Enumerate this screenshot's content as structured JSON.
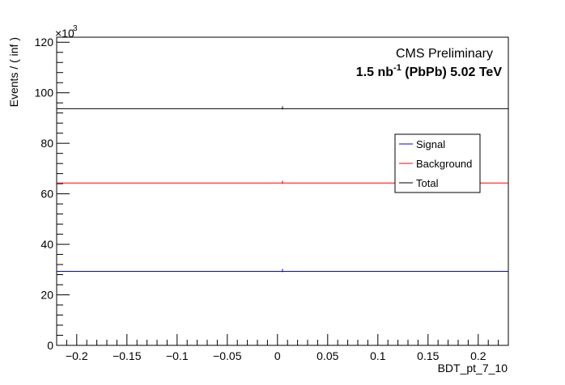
{
  "chart_data": {
    "type": "line",
    "xlabel": "BDT_pt_7_10",
    "ylabel": "Events / ( inf )",
    "y_multiplier_label": "×10",
    "y_multiplier_exp": "3",
    "xlim": [
      -0.22,
      0.23
    ],
    "ylim": [
      0,
      122
    ],
    "x_ticks": [
      -0.2,
      -0.15,
      -0.1,
      -0.05,
      0,
      0.05,
      0.1,
      0.15,
      0.2
    ],
    "x_tick_labels": [
      "−0.2",
      "−0.15",
      "−0.1",
      "−0.05",
      "0",
      "0.05",
      "0.1",
      "0.15",
      "0.2"
    ],
    "y_ticks": [
      0,
      20,
      40,
      60,
      80,
      100,
      120
    ],
    "y_tick_labels": [
      "0",
      "20",
      "40",
      "60",
      "80",
      "100",
      "120"
    ],
    "series": [
      {
        "name": "Signal",
        "color": "#0000ff",
        "y": 29.3,
        "marker_x": 0.005
      },
      {
        "name": "Background",
        "color": "#ff0000",
        "y": 64.3,
        "marker_x": 0.005
      },
      {
        "name": "Total",
        "color": "#000000",
        "y": 93.7,
        "marker_x": 0.005
      }
    ],
    "legend_position": "right",
    "annotations": {
      "experiment": "CMS Preliminary",
      "lumi_value": "1.5 nb",
      "lumi_exp": "-1",
      "lumi_rest": " (PbPb) 5.02 TeV"
    }
  }
}
